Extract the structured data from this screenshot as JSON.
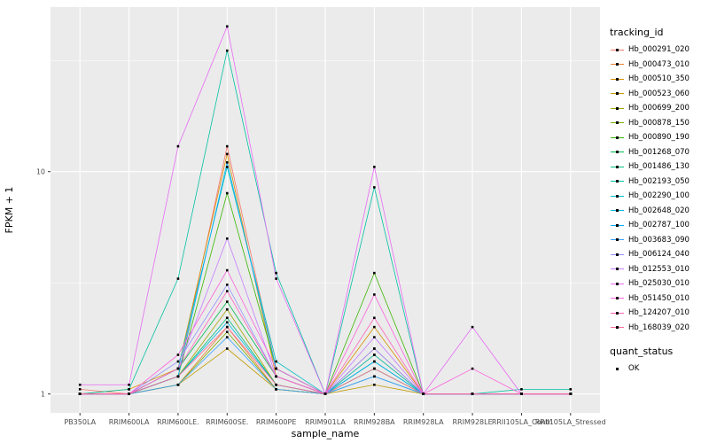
{
  "legend": {
    "tracking_title": "tracking_id",
    "quant_title": "quant_status",
    "quant_items": [
      {
        "label": "OK"
      }
    ]
  },
  "chart_data": {
    "type": "line",
    "title": "",
    "x_label": "sample_name",
    "y_label": "FPKM + 1",
    "y_scale": "log10",
    "y_ticks": [
      1,
      10
    ],
    "y_range_approx": [
      0.82,
      55
    ],
    "grid": true,
    "legend_position": "right",
    "panel_bg": "#EBEBEB",
    "grid_color": "#FFFFFF",
    "point_shape": "square",
    "point_color": "#000000",
    "quant_status": "OK",
    "categories": [
      "PB350LA",
      "RRIM600LA",
      "RRIM600LE.",
      "RRIM600SE.",
      "RRIM600PE",
      "RRIM901LA",
      "RRIM928BA",
      "RRIM928LA",
      "RRIM928LE",
      "RRII105LA_Contr",
      "RRII105LA_Stressed"
    ],
    "series": [
      {
        "name": "Hb_000291_020",
        "color": "#F8766D",
        "values": [
          1.05,
          1.0,
          1.2,
          13.0,
          1.3,
          1.0,
          1.6,
          1.0,
          1.0,
          1.0,
          1.0
        ]
      },
      {
        "name": "Hb_000473_010",
        "color": "#EA8331",
        "values": [
          1.0,
          1.0,
          1.1,
          2.0,
          1.05,
          1.0,
          1.2,
          1.0,
          1.0,
          1.0,
          1.0
        ]
      },
      {
        "name": "Hb_000510_350",
        "color": "#D89000",
        "values": [
          1.0,
          1.05,
          1.3,
          12.0,
          1.2,
          1.0,
          2.0,
          1.0,
          1.0,
          1.0,
          1.0
        ]
      },
      {
        "name": "Hb_000523_060",
        "color": "#C09B00",
        "values": [
          1.0,
          1.0,
          1.1,
          1.6,
          1.05,
          1.0,
          1.1,
          1.0,
          1.0,
          1.0,
          1.0
        ]
      },
      {
        "name": "Hb_000699_200",
        "color": "#A3A500",
        "values": [
          1.0,
          1.0,
          1.2,
          2.4,
          1.1,
          1.0,
          1.5,
          1.0,
          1.0,
          1.0,
          1.0
        ]
      },
      {
        "name": "Hb_000878_150",
        "color": "#7CAE00",
        "values": [
          1.0,
          1.0,
          1.1,
          1.9,
          1.05,
          1.0,
          1.3,
          1.0,
          1.0,
          1.0,
          1.0
        ]
      },
      {
        "name": "Hb_000890_190",
        "color": "#39B600",
        "values": [
          1.0,
          1.0,
          1.2,
          8.0,
          1.3,
          1.0,
          3.5,
          1.0,
          1.0,
          1.0,
          1.0
        ]
      },
      {
        "name": "Hb_001268_070",
        "color": "#00BB4E",
        "values": [
          1.0,
          1.0,
          1.3,
          2.6,
          1.2,
          1.0,
          1.4,
          1.0,
          1.0,
          1.0,
          1.0
        ]
      },
      {
        "name": "Hb_001486_130",
        "color": "#00BF7D",
        "values": [
          1.0,
          1.0,
          1.2,
          2.2,
          1.1,
          1.0,
          1.3,
          1.0,
          1.0,
          1.0,
          1.0
        ]
      },
      {
        "name": "Hb_002193_050",
        "color": "#00C1A3",
        "values": [
          1.0,
          1.05,
          3.3,
          35.0,
          3.5,
          1.0,
          8.5,
          1.0,
          1.0,
          1.05,
          1.05
        ]
      },
      {
        "name": "Hb_002290_100",
        "color": "#00BFC4",
        "values": [
          1.0,
          1.0,
          1.3,
          10.5,
          1.4,
          1.0,
          1.5,
          1.0,
          1.0,
          1.0,
          1.0
        ]
      },
      {
        "name": "Hb_002648_020",
        "color": "#00BAE0",
        "values": [
          1.0,
          1.0,
          1.2,
          2.1,
          1.1,
          1.0,
          1.2,
          1.0,
          1.0,
          1.0,
          1.0
        ]
      },
      {
        "name": "Hb_002787_100",
        "color": "#00B0F6",
        "values": [
          1.0,
          1.0,
          1.2,
          11.0,
          1.3,
          1.0,
          1.4,
          1.0,
          1.0,
          1.0,
          1.0
        ]
      },
      {
        "name": "Hb_003683_090",
        "color": "#35A2FF",
        "values": [
          1.0,
          1.0,
          1.1,
          1.8,
          1.05,
          1.0,
          1.2,
          1.0,
          1.0,
          1.0,
          1.0
        ]
      },
      {
        "name": "Hb_006124_040",
        "color": "#9590FF",
        "values": [
          1.0,
          1.0,
          1.4,
          3.1,
          1.2,
          1.0,
          1.6,
          1.0,
          1.0,
          1.0,
          1.0
        ]
      },
      {
        "name": "Hb_012553_010",
        "color": "#C77CFF",
        "values": [
          1.0,
          1.0,
          1.3,
          5.0,
          1.2,
          1.0,
          1.8,
          1.0,
          1.0,
          1.0,
          1.0
        ]
      },
      {
        "name": "Hb_025030_010",
        "color": "#E76BF3",
        "values": [
          1.1,
          1.1,
          13.0,
          45.0,
          3.3,
          1.0,
          10.5,
          1.0,
          2.0,
          1.0,
          1.0
        ]
      },
      {
        "name": "Hb_051450_010",
        "color": "#FA62DB",
        "values": [
          1.0,
          1.0,
          1.5,
          3.6,
          1.3,
          1.0,
          2.8,
          1.0,
          1.3,
          1.0,
          1.0
        ]
      },
      {
        "name": "Hb_124207_010",
        "color": "#FF62BC",
        "values": [
          1.0,
          1.0,
          1.3,
          2.9,
          1.2,
          1.0,
          2.2,
          1.0,
          1.0,
          1.0,
          1.0
        ]
      },
      {
        "name": "Hb_168039_020",
        "color": "#FF6A98",
        "values": [
          1.0,
          1.0,
          1.2,
          2.0,
          1.1,
          1.0,
          1.3,
          1.0,
          1.0,
          1.0,
          1.0
        ]
      }
    ]
  }
}
